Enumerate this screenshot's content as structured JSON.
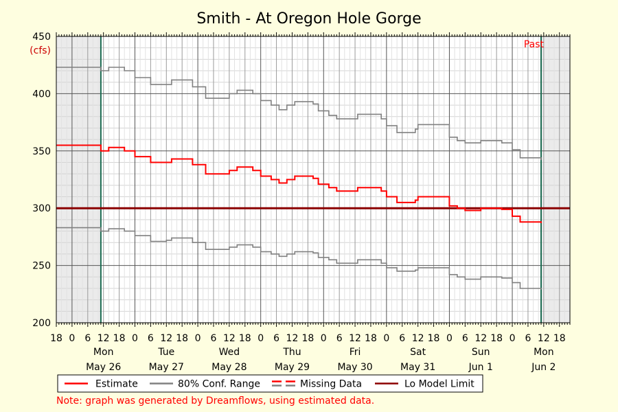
{
  "chart_data": {
    "type": "line",
    "title": "Smith - At Oregon Hole Gorge",
    "ylabel": "(cfs)",
    "ylim": [
      200,
      450
    ],
    "y_ticks": [
      200,
      250,
      300,
      350,
      400,
      450
    ],
    "grid": true,
    "x_start": "May 25 18:00",
    "x_end": "Jun 2 22:00",
    "hour_ticks": [
      "6",
      "12",
      "18",
      "0"
    ],
    "days": [
      {
        "weekday": "Mon",
        "date": "May 26"
      },
      {
        "weekday": "Tue",
        "date": "May 27"
      },
      {
        "weekday": "Wed",
        "date": "May 28"
      },
      {
        "weekday": "Thu",
        "date": "May 29"
      },
      {
        "weekday": "Fri",
        "date": "May 30"
      },
      {
        "weekday": "Sat",
        "date": "May 31"
      },
      {
        "weekday": "Sun",
        "date": "Jun 1"
      },
      {
        "weekday": "Mon",
        "date": "Jun 2"
      }
    ],
    "past_label": "Past",
    "past_range": [
      "May 26 11:00",
      "Jun 2 11:00"
    ],
    "lo_model_limit": 300,
    "series": [
      {
        "name": "Estimate",
        "color": "#ff0000",
        "points": [
          [
            "May 25 18:00",
            355
          ],
          [
            "May 26 11:00",
            350
          ],
          [
            "May 26 14:00",
            353
          ],
          [
            "May 26 20:00",
            350
          ],
          [
            "May 27 0:00",
            345
          ],
          [
            "May 27 6:00",
            340
          ],
          [
            "May 27 12:00",
            340
          ],
          [
            "May 27 14:00",
            343
          ],
          [
            "May 27 19:00",
            343
          ],
          [
            "May 27 22:00",
            338
          ],
          [
            "May 28 3:00",
            330
          ],
          [
            "May 28 9:00",
            330
          ],
          [
            "May 28 12:00",
            333
          ],
          [
            "May 28 15:00",
            336
          ],
          [
            "May 28 21:00",
            333
          ],
          [
            "May 28 24:00",
            328
          ],
          [
            "May 29 4:00",
            325
          ],
          [
            "May 29 7:00",
            322
          ],
          [
            "May 29 10:00",
            325
          ],
          [
            "May 29 13:00",
            328
          ],
          [
            "May 29 20:00",
            326
          ],
          [
            "May 29 22:00",
            321
          ],
          [
            "May 30 2:00",
            318
          ],
          [
            "May 30 5:00",
            315
          ],
          [
            "May 30 10:00",
            315
          ],
          [
            "May 30 13:00",
            318
          ],
          [
            "May 30 20:00",
            318
          ],
          [
            "May 30 22:00",
            315
          ],
          [
            "May 31 0:00",
            310
          ],
          [
            "May 31 4:00",
            305
          ],
          [
            "May 31 11:00",
            307
          ],
          [
            "May 31 12:00",
            310
          ],
          [
            "May 31 19:00",
            310
          ],
          [
            "May 31 24:00",
            302
          ],
          [
            "Jun 1 3:00",
            300
          ],
          [
            "Jun 1 6:00",
            298
          ],
          [
            "Jun 1 12:00",
            300
          ],
          [
            "Jun 1 20:00",
            299
          ],
          [
            "Jun 1 24:00",
            293
          ],
          [
            "Jun 2 3:00",
            288
          ],
          [
            "Jun 2 11:00",
            287
          ]
        ]
      },
      {
        "name": "80% Conf. Range",
        "color": "#808080",
        "points": [
          [
            "May 25 18:00",
            423
          ],
          [
            "May 26 11:00",
            420
          ],
          [
            "May 26 14:00",
            423
          ],
          [
            "May 26 20:00",
            420
          ],
          [
            "May 27 0:00",
            414
          ],
          [
            "May 27 6:00",
            408
          ],
          [
            "May 27 12:00",
            408
          ],
          [
            "May 27 14:00",
            412
          ],
          [
            "May 27 19:00",
            412
          ],
          [
            "May 27 22:00",
            406
          ],
          [
            "May 28 3:00",
            396
          ],
          [
            "May 28 9:00",
            396
          ],
          [
            "May 28 12:00",
            400
          ],
          [
            "May 28 15:00",
            403
          ],
          [
            "May 28 21:00",
            400
          ],
          [
            "May 28 24:00",
            394
          ],
          [
            "May 29 4:00",
            390
          ],
          [
            "May 29 7:00",
            386
          ],
          [
            "May 29 10:00",
            390
          ],
          [
            "May 29 13:00",
            393
          ],
          [
            "May 29 20:00",
            391
          ],
          [
            "May 29 22:00",
            385
          ],
          [
            "May 30 2:00",
            381
          ],
          [
            "May 30 5:00",
            378
          ],
          [
            "May 30 10:00",
            378
          ],
          [
            "May 30 13:00",
            382
          ],
          [
            "May 30 20:00",
            382
          ],
          [
            "May 30 22:00",
            378
          ],
          [
            "May 31 0:00",
            372
          ],
          [
            "May 31 4:00",
            366
          ],
          [
            "May 31 11:00",
            369
          ],
          [
            "May 31 12:00",
            373
          ],
          [
            "May 31 19:00",
            373
          ],
          [
            "May 31 24:00",
            362
          ],
          [
            "Jun 1 3:00",
            359
          ],
          [
            "Jun 1 6:00",
            357
          ],
          [
            "Jun 1 12:00",
            359
          ],
          [
            "Jun 1 20:00",
            357
          ],
          [
            "Jun 1 24:00",
            351
          ],
          [
            "Jun 2 3:00",
            344
          ],
          [
            "Jun 2 11:00",
            342
          ]
        ]
      },
      {
        "name": "80% Conf. Range (low)",
        "color": "#808080",
        "points": [
          [
            "May 25 18:00",
            283
          ],
          [
            "May 26 11:00",
            280
          ],
          [
            "May 26 14:00",
            282
          ],
          [
            "May 26 20:00",
            280
          ],
          [
            "May 27 0:00",
            276
          ],
          [
            "May 27 6:00",
            271
          ],
          [
            "May 27 12:00",
            272
          ],
          [
            "May 27 14:00",
            274
          ],
          [
            "May 27 19:00",
            274
          ],
          [
            "May 27 22:00",
            270
          ],
          [
            "May 28 3:00",
            264
          ],
          [
            "May 28 9:00",
            264
          ],
          [
            "May 28 12:00",
            266
          ],
          [
            "May 28 15:00",
            268
          ],
          [
            "May 28 21:00",
            266
          ],
          [
            "May 28 24:00",
            262
          ],
          [
            "May 29 4:00",
            260
          ],
          [
            "May 29 7:00",
            258
          ],
          [
            "May 29 10:00",
            260
          ],
          [
            "May 29 13:00",
            262
          ],
          [
            "May 29 20:00",
            261
          ],
          [
            "May 29 22:00",
            257
          ],
          [
            "May 30 2:00",
            255
          ],
          [
            "May 30 5:00",
            252
          ],
          [
            "May 30 10:00",
            252
          ],
          [
            "May 30 13:00",
            255
          ],
          [
            "May 30 20:00",
            255
          ],
          [
            "May 30 22:00",
            252
          ],
          [
            "May 31 0:00",
            248
          ],
          [
            "May 31 4:00",
            245
          ],
          [
            "May 31 11:00",
            246
          ],
          [
            "May 31 12:00",
            248
          ],
          [
            "May 31 19:00",
            248
          ],
          [
            "May 31 24:00",
            242
          ],
          [
            "Jun 1 3:00",
            240
          ],
          [
            "Jun 1 6:00",
            238
          ],
          [
            "Jun 1 12:00",
            240
          ],
          [
            "Jun 1 20:00",
            239
          ],
          [
            "Jun 1 24:00",
            235
          ],
          [
            "Jun 2 3:00",
            230
          ],
          [
            "Jun 2 11:00",
            229
          ]
        ]
      }
    ],
    "legend": [
      {
        "label": "Estimate",
        "style": "solid",
        "color": "#ff0000"
      },
      {
        "label": "80% Conf. Range",
        "style": "solid",
        "color": "#808080"
      },
      {
        "label": "Missing Data",
        "style": "dashed",
        "color": "#ff0000"
      },
      {
        "label": "Lo Model Limit",
        "style": "solid",
        "color": "#8b0000"
      }
    ],
    "note": "Note: graph was generated by Dreamflows, using estimated data."
  }
}
